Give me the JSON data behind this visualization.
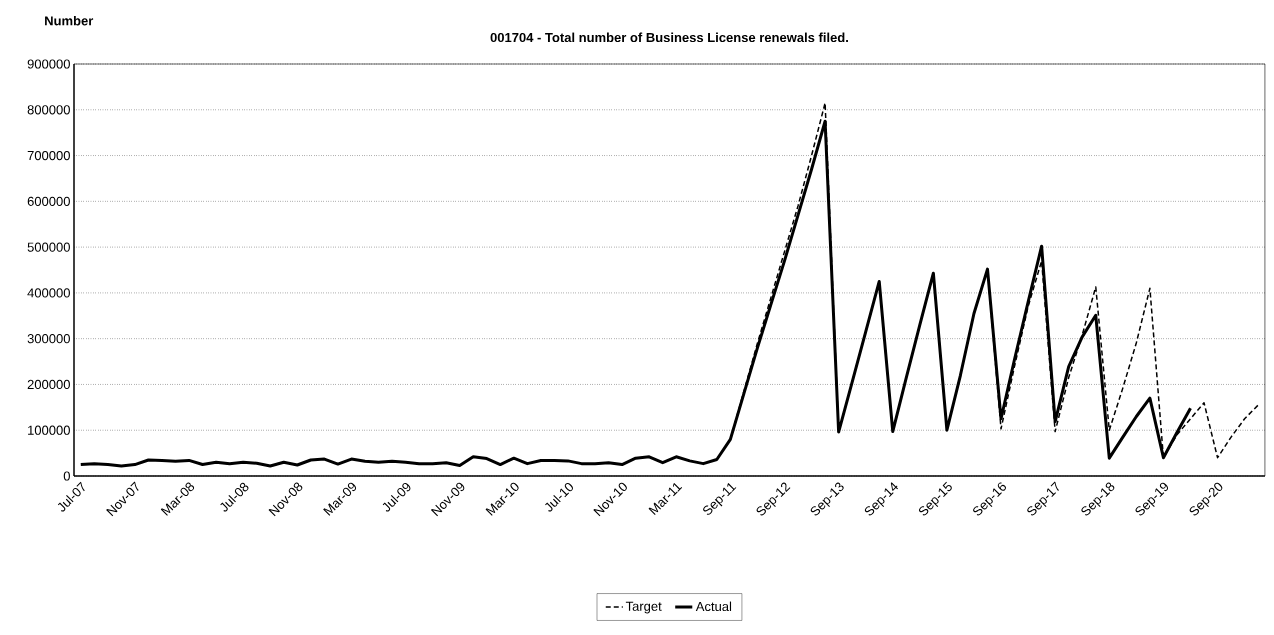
{
  "chart_data": {
    "type": "line",
    "title": "001704 - Total number of Business License renewals filed.",
    "ylabel": "Number",
    "categories": [
      "Jul-07",
      null,
      null,
      null,
      "Nov-07",
      null,
      null,
      null,
      "Mar-08",
      null,
      null,
      null,
      "Jul-08",
      null,
      null,
      null,
      "Nov-08",
      null,
      null,
      null,
      "Mar-09",
      null,
      null,
      null,
      "Jul-09",
      null,
      null,
      null,
      "Nov-09",
      null,
      null,
      null,
      "Mar-10",
      null,
      null,
      null,
      "Jul-10",
      null,
      null,
      null,
      "Nov-10",
      null,
      null,
      null,
      "Mar-11",
      null,
      null,
      null,
      "Sep-11",
      null,
      null,
      null,
      "Sep-12",
      null,
      null,
      null,
      "Sep-13",
      null,
      null,
      null,
      "Sep-14",
      null,
      null,
      null,
      "Sep-15",
      null,
      null,
      null,
      "Sep-16",
      null,
      null,
      null,
      "Sep-17",
      null,
      null,
      null,
      "Sep-18",
      null,
      null,
      null,
      "Sep-19",
      null,
      null,
      null,
      "Sep-20",
      null,
      null,
      null
    ],
    "series": [
      {
        "name": "Target",
        "color": "#000000",
        "line_style": "dashed",
        "values": [
          null,
          null,
          null,
          null,
          null,
          null,
          null,
          null,
          null,
          null,
          null,
          null,
          null,
          null,
          null,
          null,
          null,
          null,
          null,
          null,
          null,
          null,
          null,
          null,
          null,
          null,
          null,
          null,
          null,
          null,
          null,
          null,
          null,
          null,
          null,
          null,
          null,
          null,
          null,
          null,
          null,
          null,
          null,
          null,
          null,
          null,
          null,
          36000,
          80000,
          185000,
          290000,
          390000,
          490000,
          590000,
          700000,
          815000,
          96000,
          205000,
          315000,
          425000,
          97000,
          215000,
          330000,
          443000,
          100000,
          220000,
          355000,
          452000,
          103000,
          240000,
          370000,
          470000,
          97000,
          215000,
          308000,
          413000,
          100000,
          192000,
          291000,
          410000,
          40000,
          90000,
          125000,
          160000,
          40000,
          85000,
          125000,
          155000
        ]
      },
      {
        "name": "Actual",
        "color": "#000000",
        "line_style": "solid",
        "values": [
          25000,
          27000,
          25000,
          22000,
          25000,
          35000,
          34000,
          32000,
          34000,
          25000,
          30000,
          27000,
          30000,
          28000,
          22000,
          30000,
          24000,
          35000,
          37000,
          26000,
          37000,
          32000,
          30000,
          32000,
          30000,
          27000,
          27000,
          29000,
          23000,
          42000,
          38000,
          25000,
          39000,
          27000,
          34000,
          34000,
          33000,
          27000,
          27000,
          29000,
          25000,
          39000,
          42000,
          29000,
          42000,
          33000,
          27000,
          36000,
          80000,
          180000,
          280000,
          375000,
          470000,
          570000,
          670000,
          775000,
          96000,
          205000,
          315000,
          425000,
          97000,
          215000,
          330000,
          443000,
          100000,
          220000,
          355000,
          452000,
          125000,
          255000,
          380000,
          502000,
          119000,
          239000,
          304000,
          351000,
          39000,
          85000,
          130000,
          170000,
          40000,
          95000,
          148000,
          null,
          null,
          null,
          null,
          null
        ]
      }
    ],
    "ylim": [
      0,
      900000
    ],
    "yticks": [
      0,
      100000,
      200000,
      300000,
      400000,
      500000,
      600000,
      700000,
      800000,
      900000
    ],
    "grid": "y",
    "legend": "bottom"
  }
}
